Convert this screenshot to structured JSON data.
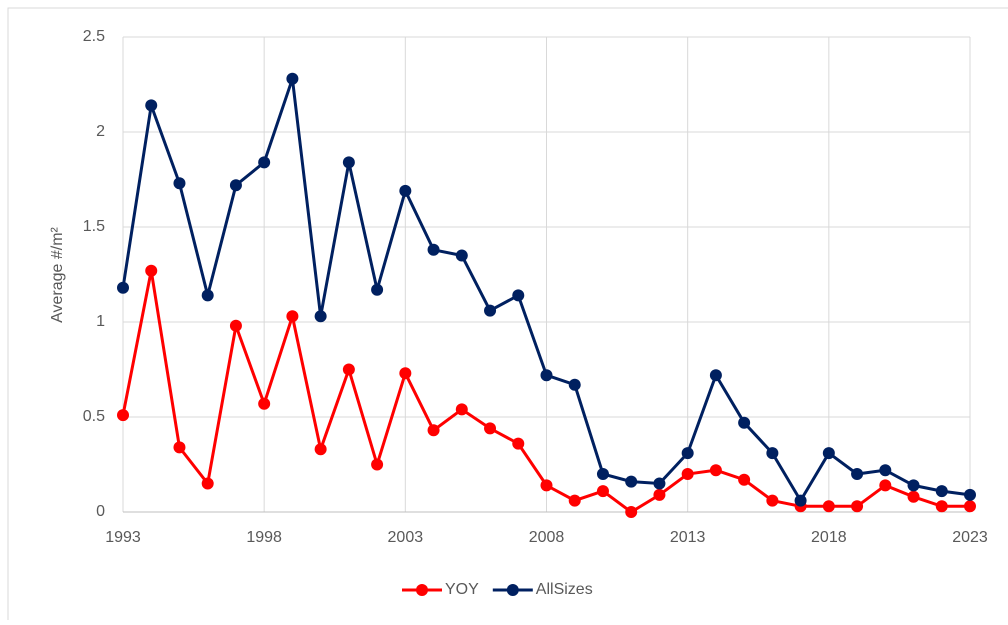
{
  "chart_data": {
    "type": "line",
    "y_label": "Average #/m²",
    "x": [
      1993,
      1994,
      1995,
      1996,
      1997,
      1998,
      1999,
      2000,
      2001,
      2002,
      2003,
      2004,
      2005,
      2006,
      2007,
      2008,
      2009,
      2010,
      2011,
      2012,
      2013,
      2014,
      2015,
      2016,
      2017,
      2018,
      2019,
      2020,
      2021,
      2022,
      2023
    ],
    "series": [
      {
        "name": "YOY",
        "color": "#ff0000",
        "values": [
          0.51,
          1.27,
          0.34,
          0.15,
          0.98,
          0.57,
          1.03,
          0.33,
          0.75,
          0.25,
          0.73,
          0.43,
          0.54,
          0.44,
          0.36,
          0.14,
          0.06,
          0.11,
          0.0,
          0.09,
          0.2,
          0.22,
          0.17,
          0.06,
          0.03,
          0.03,
          0.03,
          0.14,
          0.08,
          0.03,
          0.03
        ]
      },
      {
        "name": "AllSizes",
        "color": "#002060",
        "values": [
          1.18,
          2.14,
          1.73,
          1.14,
          1.72,
          1.84,
          2.28,
          1.03,
          1.84,
          1.17,
          1.69,
          1.38,
          1.35,
          1.06,
          1.14,
          0.72,
          0.67,
          0.2,
          0.16,
          0.15,
          0.31,
          0.72,
          0.47,
          0.31,
          0.06,
          0.31,
          0.2,
          0.22,
          0.14,
          0.11,
          0.09
        ]
      }
    ],
    "xlim": [
      1993,
      2023
    ],
    "xticks": [
      1993,
      1998,
      2003,
      2008,
      2013,
      2018,
      2023
    ],
    "ylim": [
      0,
      2.5
    ],
    "yticks": [
      0,
      0.5,
      1,
      1.5,
      2,
      2.5
    ],
    "grid": true,
    "legend": "bottom"
  }
}
